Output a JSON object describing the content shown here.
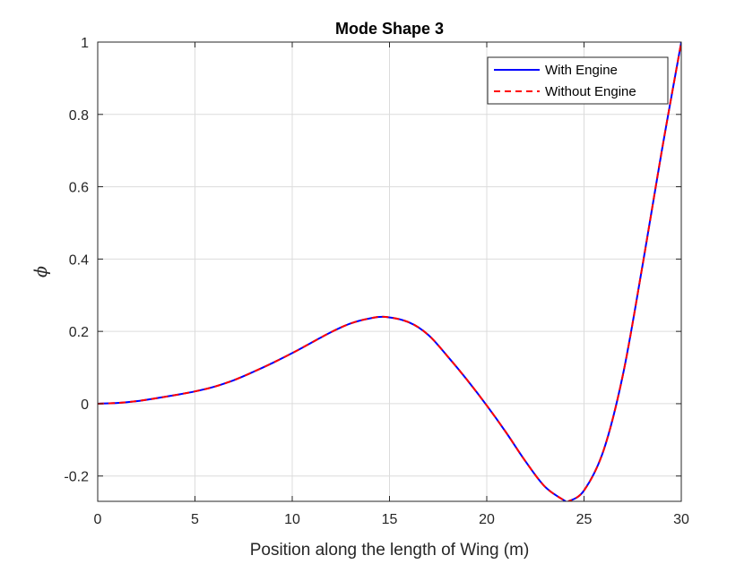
{
  "chart_data": {
    "type": "line",
    "title": "Mode Shape 3",
    "xlabel": "Position along the length of Wing (m)",
    "ylabel": "ϕ",
    "xlim": [
      0,
      30
    ],
    "ylim": [
      -0.27,
      1
    ],
    "xticks": [
      0,
      5,
      10,
      15,
      20,
      25,
      30
    ],
    "yticks": [
      -0.2,
      0,
      0.2,
      0.4,
      0.6,
      0.8,
      1
    ],
    "xtick_labels": [
      "0",
      "5",
      "10",
      "15",
      "20",
      "25",
      "30"
    ],
    "ytick_labels": [
      "-0.2",
      "0",
      "0.2",
      "0.4",
      "0.6",
      "0.8",
      "1"
    ],
    "grid": true,
    "legend_position": "top-right",
    "series": [
      {
        "name": "With Engine",
        "color": "#0000ff",
        "style": "solid",
        "x": [
          0,
          1,
          2,
          3,
          4,
          5,
          6,
          7,
          8,
          9,
          10,
          11,
          12,
          13,
          14,
          14.8,
          16,
          17,
          18,
          19,
          20,
          21,
          22,
          23,
          24,
          24.2,
          25,
          26,
          27,
          28,
          29,
          30
        ],
        "y": [
          0,
          0.002,
          0.007,
          0.015,
          0.024,
          0.034,
          0.047,
          0.065,
          0.088,
          0.113,
          0.14,
          0.169,
          0.198,
          0.222,
          0.236,
          0.24,
          0.225,
          0.19,
          0.13,
          0.065,
          -0.005,
          -0.08,
          -0.16,
          -0.23,
          -0.268,
          -0.27,
          -0.24,
          -0.13,
          0.08,
          0.38,
          0.7,
          1.0
        ]
      },
      {
        "name": "Without Engine",
        "color": "#ff0000",
        "style": "dashed",
        "x": [
          0,
          1,
          2,
          3,
          4,
          5,
          6,
          7,
          8,
          9,
          10,
          11,
          12,
          13,
          14,
          14.8,
          16,
          17,
          18,
          19,
          20,
          21,
          22,
          23,
          24,
          24.2,
          25,
          26,
          27,
          28,
          29,
          30
        ],
        "y": [
          0,
          0.002,
          0.007,
          0.015,
          0.024,
          0.034,
          0.047,
          0.065,
          0.088,
          0.113,
          0.14,
          0.169,
          0.198,
          0.222,
          0.236,
          0.24,
          0.225,
          0.19,
          0.13,
          0.065,
          -0.005,
          -0.08,
          -0.16,
          -0.23,
          -0.268,
          -0.27,
          -0.24,
          -0.13,
          0.08,
          0.38,
          0.7,
          1.0
        ]
      }
    ]
  }
}
